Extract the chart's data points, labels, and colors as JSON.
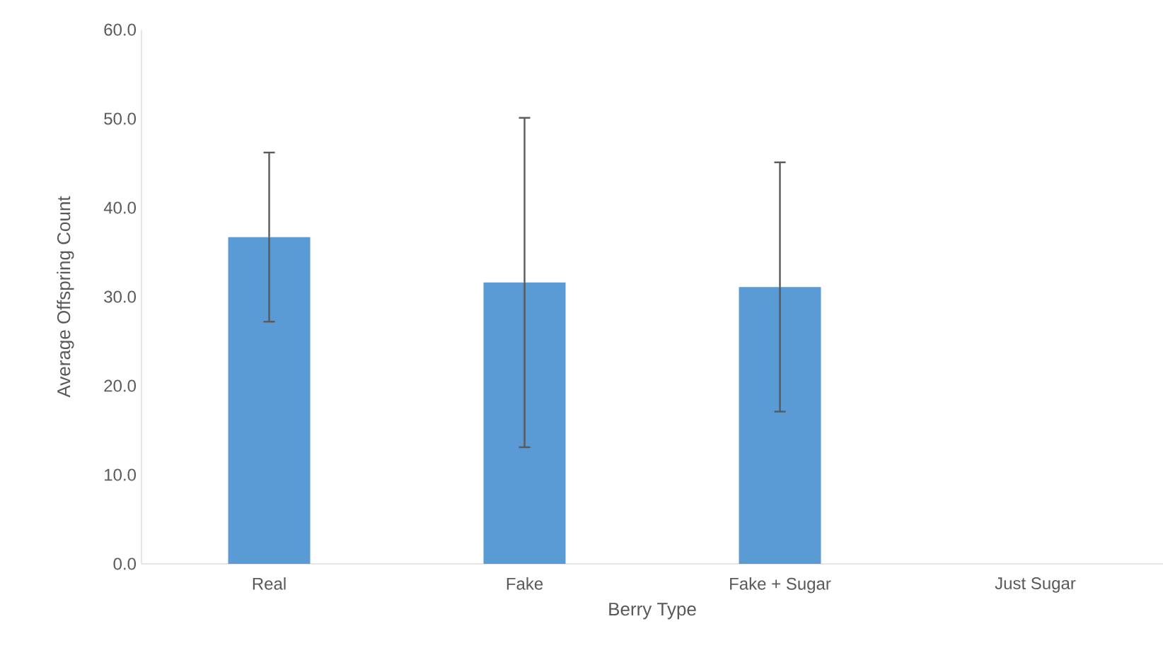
{
  "chart_data": {
    "type": "bar",
    "xlabel": "Berry Type",
    "ylabel": "Average Offspring Count",
    "categories": [
      "Real",
      "Fake",
      "Fake + Sugar",
      "Just Sugar"
    ],
    "values": [
      36.7,
      31.6,
      31.1,
      0
    ],
    "errors": [
      9.5,
      18.5,
      14.0,
      null
    ],
    "color": "#5b9bd5",
    "ylim": [
      0,
      60
    ],
    "yticks": [
      {
        "value": 0,
        "label": "0.0"
      },
      {
        "value": 10,
        "label": "10.0"
      },
      {
        "value": 20,
        "label": "20.0"
      },
      {
        "value": 30,
        "label": "30.0"
      },
      {
        "value": 40,
        "label": "40.0"
      },
      {
        "value": 50,
        "label": "50.0"
      },
      {
        "value": 60,
        "label": "60.0"
      }
    ],
    "grid": false
  }
}
